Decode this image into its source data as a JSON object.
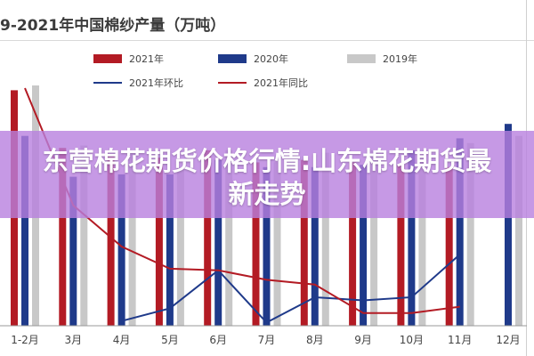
{
  "chart_data": {
    "type": "bar",
    "title": "9-2021年中国棉纱产量（万吨）",
    "categories": [
      "1-2月",
      "3月",
      "4月",
      "5月",
      "6月",
      "7月",
      "8月",
      "9月",
      "10月",
      "11月",
      "12月"
    ],
    "series": [
      {
        "name": "2021年",
        "kind": "bar",
        "color": "#b31b24",
        "values": [
          49.0,
          37.0,
          35.5,
          35.0,
          36.5,
          34.0,
          34.5,
          34.0,
          33.5,
          33.0,
          null
        ]
      },
      {
        "name": "2020年",
        "kind": "bar",
        "color": "#1f3a8a",
        "values": [
          39.5,
          31.0,
          31.5,
          31.5,
          34.5,
          33.0,
          33.0,
          33.5,
          36.5,
          39.0,
          42.0
        ]
      },
      {
        "name": "2019年",
        "kind": "bar",
        "color": "#c8c8c8",
        "values": [
          50.0,
          37.5,
          36.0,
          33.0,
          36.5,
          34.0,
          36.0,
          36.5,
          35.5,
          38.0,
          39.5
        ]
      },
      {
        "name": "2021年环比",
        "kind": "line",
        "color": "#1f3a8a",
        "values": [
          null,
          null,
          3.0,
          11.0,
          35.0,
          2.0,
          18.0,
          16.0,
          18.0,
          45.0,
          null
        ]
      },
      {
        "name": "2021年同比",
        "kind": "line",
        "color": "#b31b24",
        "values": [
          150.0,
          76.0,
          50.0,
          36.0,
          35.0,
          29.0,
          26.0,
          8.0,
          8.0,
          12.0,
          null
        ]
      }
    ]
  },
  "banner": {
    "title": "东营棉花期货价格行情:山东棉花期货最新走势"
  }
}
